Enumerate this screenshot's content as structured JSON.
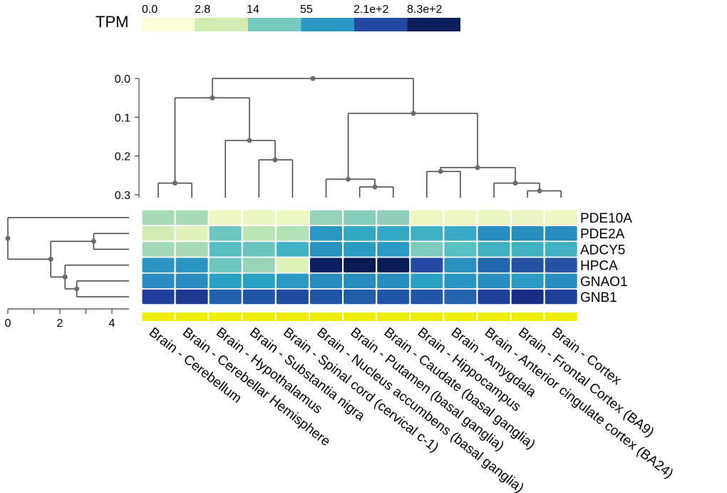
{
  "chart_data": {
    "type": "heatmap",
    "title": "",
    "legend": {
      "label": "TPM",
      "ticks": [
        "0.0",
        "2.8",
        "14",
        "55",
        "2.1e+2",
        "8.3e+2"
      ],
      "colors": [
        "#fbfcd9",
        "#d2ecb4",
        "#75cabd",
        "#2c98c4",
        "#2449a2",
        "#0e1e5d"
      ]
    },
    "genes": [
      "PDE10A",
      "PDE2A",
      "ADCY5",
      "HPCA",
      "GNAO1",
      "GNB1"
    ],
    "tissues": [
      "Brain - Cerebellum",
      "Brain - Cerebellar Hemisphere",
      "Brain - Hypothalamus",
      "Brain - Substantia nigra",
      "Brain - Spinal cord (cervical c-1)",
      "Brain - Nucleus accumbens (basal ganglia)",
      "Brain - Putamen (basal ganglia)",
      "Brain - Caudate (basal ganglia)",
      "Brain - Hippocampus",
      "Brain - Amygdala",
      "Brain - Anterior cingulate cortex (BA24)",
      "Brain - Frontal Cortex (BA9)",
      "Brain - Cortex"
    ],
    "colors": [
      [
        "#aadbb8",
        "#aadbb8",
        "#eef7c4",
        "#eaf6c4",
        "#eef8c5",
        "#95d2b9",
        "#84cdbb",
        "#90d0ba",
        "#eef7c4",
        "#eef7c4",
        "#eaf5c2",
        "#eaf5c2",
        "#eef7c4"
      ],
      [
        "#d2ecb4",
        "#e4f3bc",
        "#6ec6be",
        "#bde3b7",
        "#b3e0b6",
        "#2c98c4",
        "#35a6c4",
        "#35a6c4",
        "#41b0c3",
        "#3aa9c5",
        "#2a8cbe",
        "#2a8cbe",
        "#2a8cbe"
      ],
      [
        "#a3d8b8",
        "#a8dab7",
        "#58bec0",
        "#6ac5bf",
        "#43b1c4",
        "#2b91c1",
        "#2c9cc5",
        "#2c9ac4",
        "#7dcbbc",
        "#5abfc0",
        "#43b1c4",
        "#43b1c4",
        "#43b1c4"
      ],
      [
        "#2b94c3",
        "#2b94c3",
        "#6ec6be",
        "#99d4b9",
        "#ddf1b8",
        "#0e1f64",
        "#0b1a54",
        "#081d58",
        "#2449a2",
        "#2b8fc0",
        "#2268ae",
        "#2553a3",
        "#2553a3"
      ],
      [
        "#2c8bc0",
        "#2c8bc0",
        "#2ca0c4",
        "#2ca0c4",
        "#2c9ac4",
        "#2a8cbe",
        "#2a8cbe",
        "#2a8cbe",
        "#2ca0c4",
        "#2b95c3",
        "#2a8cbe",
        "#2c9ac4",
        "#2a8cbe"
      ],
      [
        "#213f9a",
        "#1b3a90",
        "#2160aa",
        "#2256a6",
        "#1e4da0",
        "#2256a6",
        "#225ea8",
        "#2256a6",
        "#2256a6",
        "#2564ac",
        "#20409a",
        "#1b2e84",
        "#20409a"
      ]
    ],
    "column_dendrogram_axis": {
      "ticks": [
        "0.0",
        "0.1",
        "0.2",
        "0.3"
      ],
      "range": [
        0.0,
        0.3
      ]
    },
    "row_dendrogram_axis": {
      "ticks": [
        "0",
        "2",
        "4"
      ],
      "range": [
        0,
        4
      ]
    },
    "group_bar_color": "#eeee00"
  }
}
